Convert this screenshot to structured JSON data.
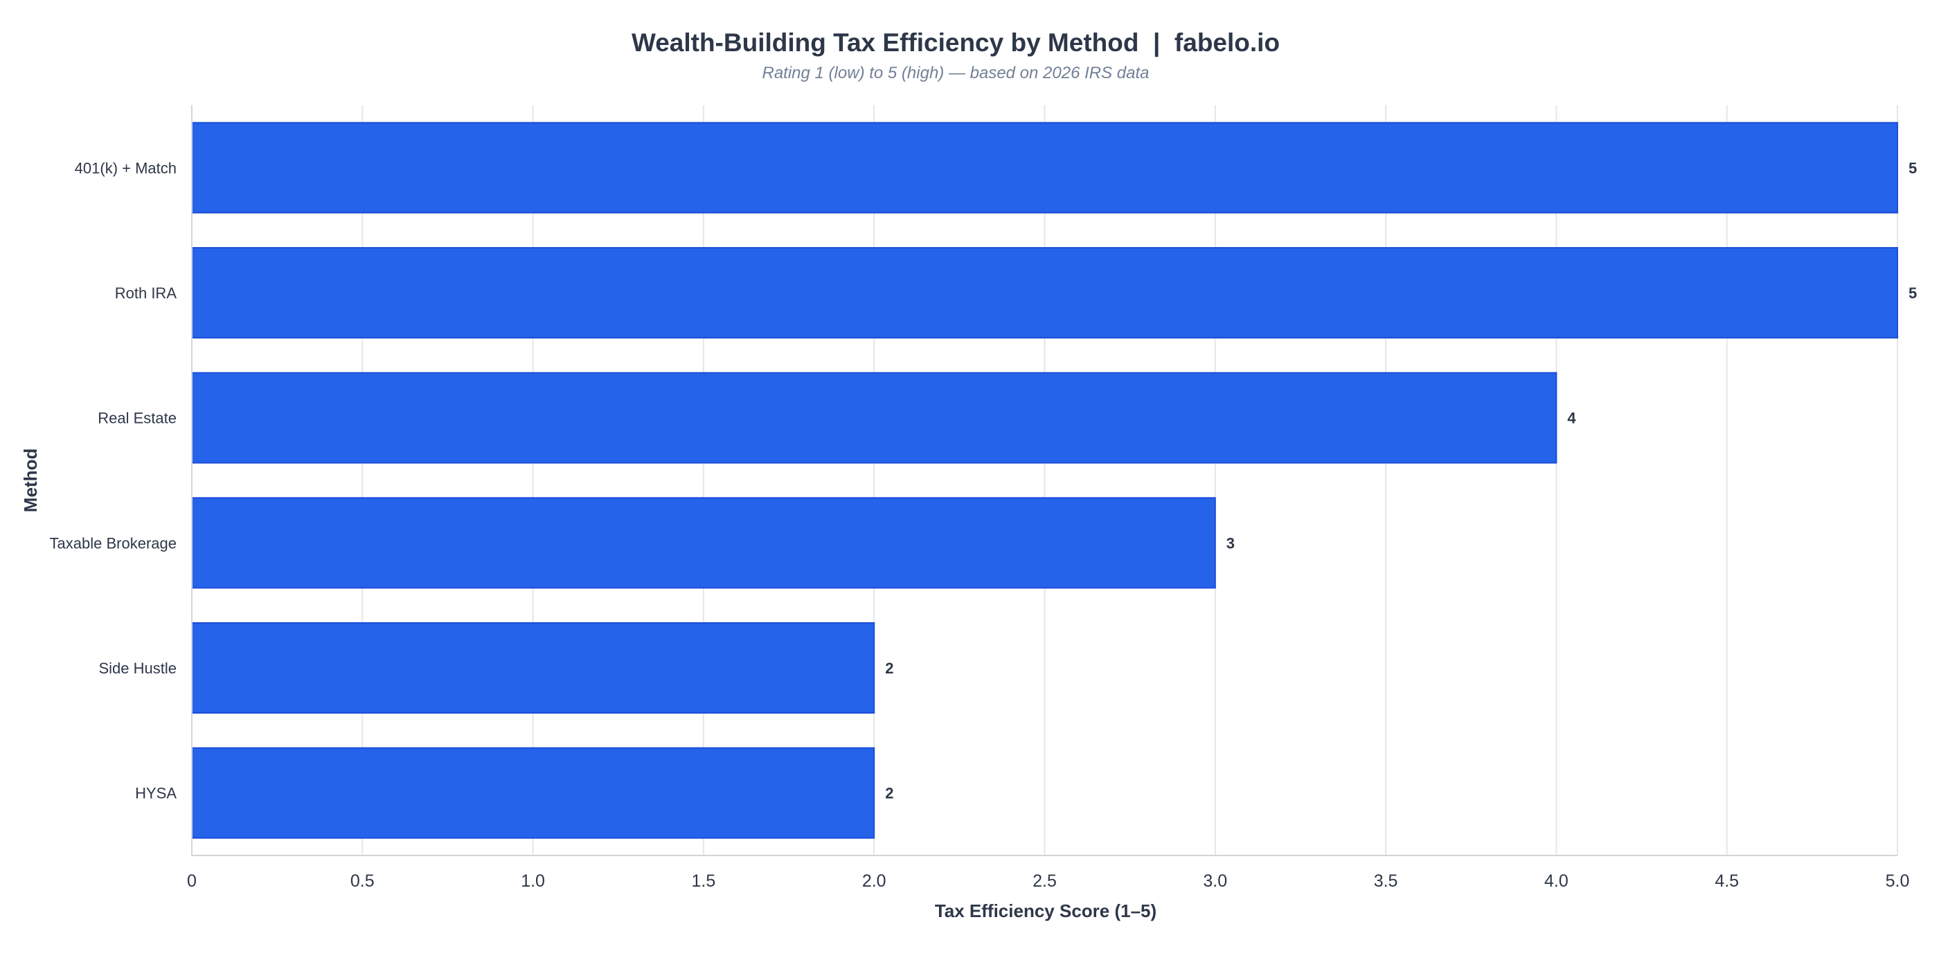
{
  "title": "Wealth-Building Tax Efficiency by Method  |  fabelo.io",
  "subtitle": "Rating 1 (low) to 5 (high) — based on 2026 IRS data",
  "chart_data": {
    "type": "bar",
    "orientation": "horizontal",
    "title": "Wealth-Building Tax Efficiency by Method  |  fabelo.io",
    "subtitle": "Rating 1 (low) to 5 (high) — based on 2026 IRS data",
    "xlabel": "Tax Efficiency Score (1–5)",
    "ylabel": "Method",
    "categories": [
      "401(k) + Match",
      "Roth IRA",
      "Real Estate",
      "Taxable Brokerage",
      "Side Hustle",
      "HYSA"
    ],
    "values": [
      5,
      5,
      4,
      3,
      2,
      2
    ],
    "data_labels": [
      "5",
      "5",
      "4",
      "3",
      "2",
      "2"
    ],
    "xlim": [
      0,
      5
    ],
    "x_ticks": [
      0,
      0.5,
      1,
      1.5,
      2,
      2.5,
      3,
      3.5,
      4,
      4.5,
      5
    ],
    "x_tick_labels": [
      "0",
      "0.5",
      "1.0",
      "1.5",
      "2.0",
      "2.5",
      "3.0",
      "3.5",
      "4.0",
      "4.5",
      "5.0"
    ],
    "grid": true,
    "legend": "none",
    "bar_color": "#2563eb",
    "bar_edge_color": "#1d4ed8"
  }
}
